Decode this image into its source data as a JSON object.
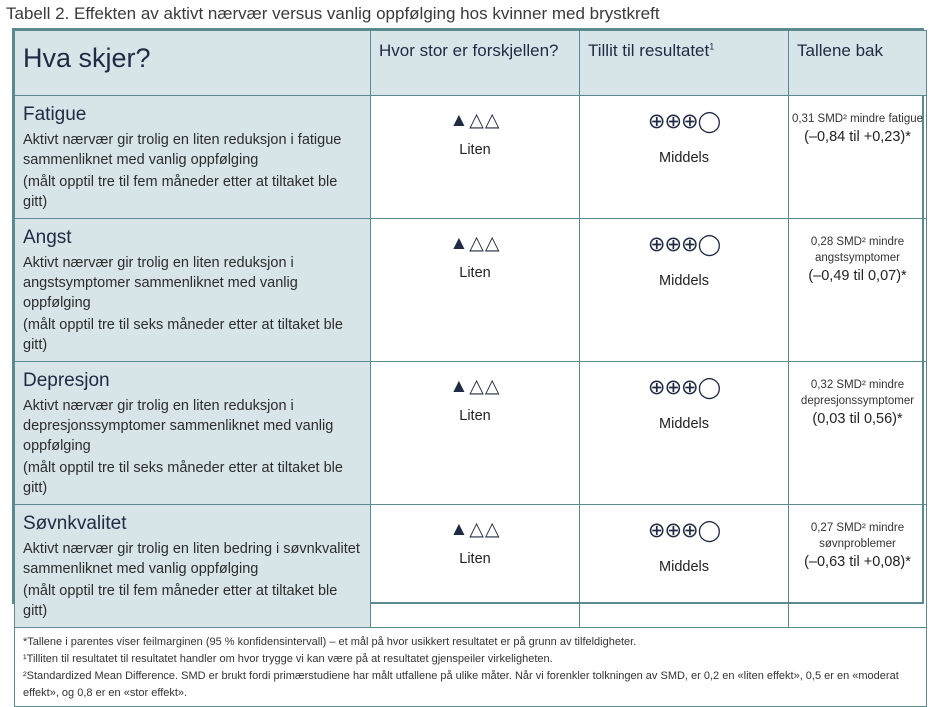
{
  "caption": "Tabell 2. Effekten av aktivt nærvær versus vanlig oppfølging hos kvinner med brystkreft",
  "headers": {
    "what": "Hva skjer?",
    "size": "Hvor stor er forskjellen?",
    "certainty": "Tillit til resultatet",
    "certainty_sup": "1",
    "numbers": "Tallene bak"
  },
  "rows": [
    {
      "title": "Fatigue",
      "desc": "Aktivt nærvær gir trolig en liten reduksjon i fatigue sammenliknet med vanlig oppfølging",
      "note": "(målt opptil tre til fem måneder etter at tiltaket ble gitt)",
      "size_symbol": "▲△△",
      "size_label": "Liten",
      "certainty_symbol": "⊕⊕⊕◯",
      "certainty_label": "Middels",
      "effect": "0,31 SMD² mindre fatigue",
      "ci": "(–0,84 til +0,23)*"
    },
    {
      "title": "Angst",
      "desc": "Aktivt nærvær gir trolig en liten reduksjon i angstsymptomer sammenliknet med vanlig oppfølging",
      "note": "(målt opptil tre til seks måneder etter at tiltaket ble gitt)",
      "size_symbol": "▲△△",
      "size_label": "Liten",
      "certainty_symbol": "⊕⊕⊕◯",
      "certainty_label": "Middels",
      "effect": "0,28 SMD² mindre angstsymptomer",
      "ci": "(–0,49 til 0,07)*"
    },
    {
      "title": "Depresjon",
      "desc": "Aktivt nærvær gir trolig en liten reduksjon i depresjonssymptomer sammenliknet med vanlig oppfølging",
      "note": "(målt opptil tre til seks måneder etter at tiltaket ble gitt)",
      "size_symbol": "▲△△",
      "size_label": "Liten",
      "certainty_symbol": "⊕⊕⊕◯",
      "certainty_label": "Middels",
      "effect": "0,32 SMD² mindre depresjonssymptomer",
      "ci": "(0,03 til 0,56)*"
    },
    {
      "title": "Søvnkvalitet",
      "desc": "Aktivt nærvær gir trolig en liten bedring i søvnkvalitet sammenliknet med vanlig oppfølging",
      "note": "(målt opptil tre til fem måneder etter at tiltaket ble gitt)",
      "size_symbol": "▲△△",
      "size_label": "Liten",
      "certainty_symbol": "⊕⊕⊕◯",
      "certainty_label": "Middels",
      "effect": "0,27 SMD² mindre søvnproblemer",
      "ci": "(–0,63 til +0,08)*"
    }
  ],
  "footnotes": [
    "*Tallene i parentes viser feilmarginen (95 % konfidensintervall) – et mål på hvor usikkert resultatet er på grunn av tilfeldigheter.",
    "¹Tilliten til resultatet til resultatet handler om hvor trygge vi kan være på at resultatet gjenspeiler virkeligheten.",
    "²Standardized Mean Difference. SMD er brukt fordi primærstudiene har målt utfallene på ulike måter. Når vi forenkler tolkningen av SMD, er 0,2 en «liten effekt», 0,5 er en «moderat effekt», og 0,8 er en «stor effekt»."
  ]
}
